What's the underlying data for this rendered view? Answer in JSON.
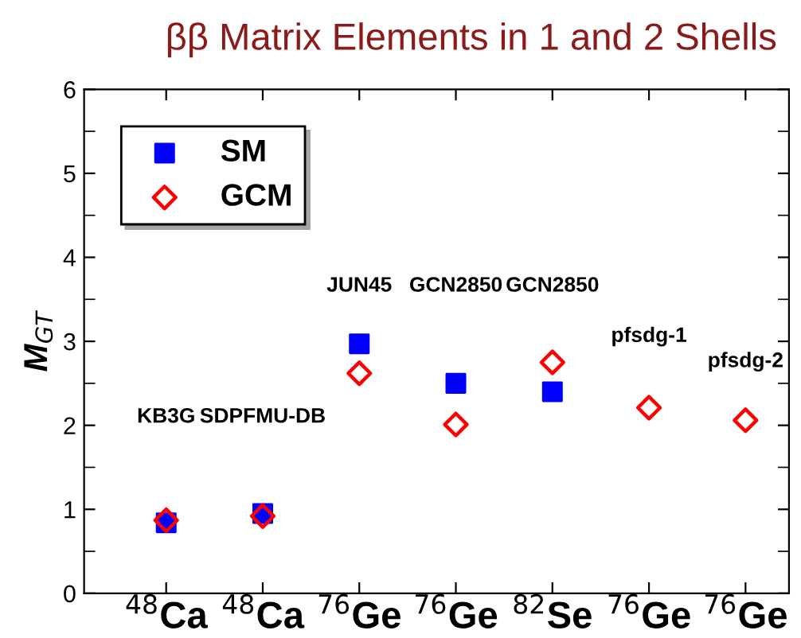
{
  "chart_data": {
    "type": "scatter",
    "title": "ββ Matrix Elements in 1 and 2 Shells",
    "ylabel": "M$_{GT}$",
    "categories": [
      "$^{48}$Ca",
      "$^{48}$Ca",
      "$^{76}$Ge",
      "$^{76}$Ge",
      "$^{82}$Se",
      "$^{76}$Ge",
      "$^{76}$Ge"
    ],
    "series": [
      {
        "name": "SM",
        "color": "#0000ff",
        "marker": "square",
        "values": [
          0.84,
          0.95,
          2.97,
          2.5,
          2.4,
          null,
          null
        ]
      },
      {
        "name": "GCM",
        "color": "#ff0000",
        "marker": "diamond",
        "values": [
          0.87,
          0.92,
          2.62,
          2.01,
          2.75,
          2.21,
          2.06
        ]
      }
    ],
    "annotations": [
      "KB3G",
      "SDPFMU-DB",
      "JUN45",
      "GCN2850",
      "GCN2850",
      "pfsdg-1",
      "pfsdg-2"
    ],
    "ylim": [
      0,
      6
    ],
    "yticks": [
      0,
      1,
      2,
      3,
      4,
      5,
      6
    ],
    "grid": false,
    "legend": "top left"
  }
}
